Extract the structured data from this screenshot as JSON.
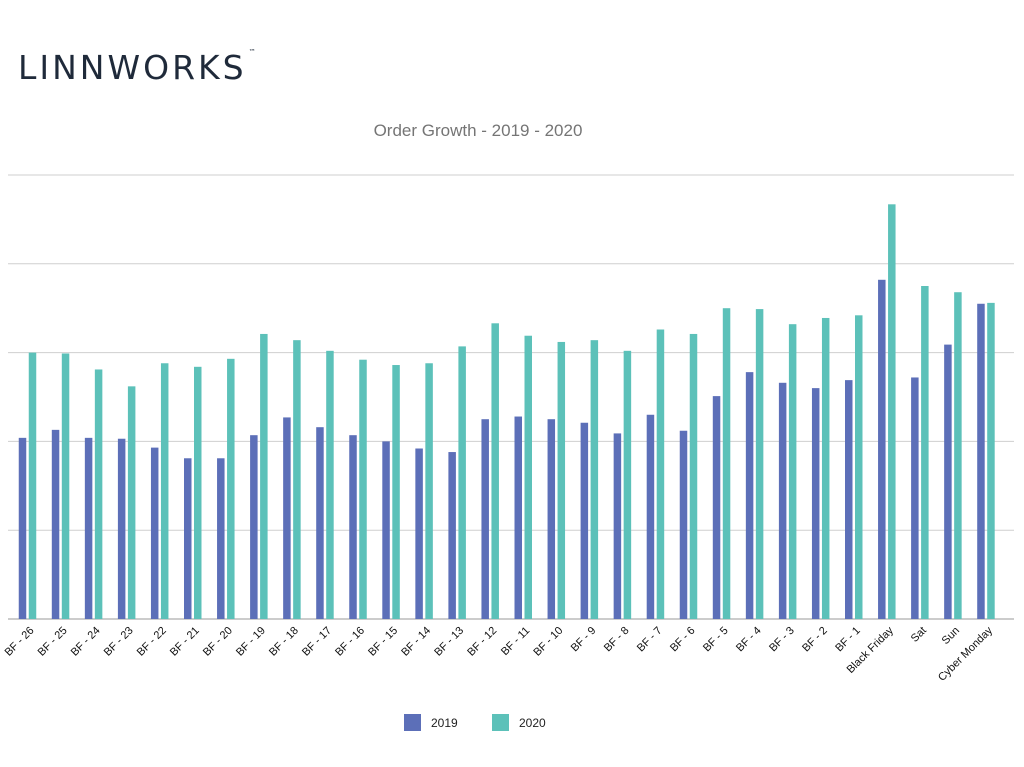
{
  "brand": {
    "wordmark": "LINNWORKS",
    "tm": "™"
  },
  "chart_data": {
    "type": "bar",
    "title": "Order Growth - 2019 - 2020",
    "xlabel": "",
    "ylabel": "",
    "ylim": [
      0,
      5
    ],
    "grid": true,
    "y_gridlines": [
      0,
      1,
      2,
      3,
      4,
      5
    ],
    "legend_position": "bottom-center",
    "categories": [
      "BF - 26",
      "BF - 25",
      "BF - 24",
      "BF - 23",
      "BF - 22",
      "BF - 21",
      "BF - 20",
      "BF - 19",
      "BF - 18",
      "BF - 17",
      "BF - 16",
      "BF - 15",
      "BF - 14",
      "BF - 13",
      "BF - 12",
      "BF - 11",
      "BF - 10",
      "BF - 9",
      "BF - 8",
      "BF - 7",
      "BF - 6",
      "BF - 5",
      "BF - 4",
      "BF - 3",
      "BF - 2",
      "BF - 1",
      "Black Friday",
      "Sat",
      "Sun",
      "Cyber Monday"
    ],
    "series": [
      {
        "name": "2019",
        "color": "#5c6fb8",
        "values": [
          2.04,
          2.13,
          2.04,
          2.03,
          1.93,
          1.81,
          1.81,
          2.07,
          2.27,
          2.16,
          2.07,
          2.0,
          1.92,
          1.88,
          2.25,
          2.28,
          2.25,
          2.21,
          2.09,
          2.3,
          2.12,
          2.51,
          2.78,
          2.66,
          2.6,
          2.69,
          3.82,
          2.72,
          3.09,
          3.55
        ]
      },
      {
        "name": "2020",
        "color": "#5cc1b9",
        "values": [
          3.0,
          2.99,
          2.81,
          2.62,
          2.88,
          2.84,
          2.93,
          3.21,
          3.14,
          3.02,
          2.92,
          2.86,
          2.88,
          3.07,
          3.33,
          3.19,
          3.12,
          3.14,
          3.02,
          3.26,
          3.21,
          3.5,
          3.49,
          3.32,
          3.39,
          3.42,
          4.67,
          3.75,
          3.68,
          3.56
        ]
      }
    ]
  }
}
